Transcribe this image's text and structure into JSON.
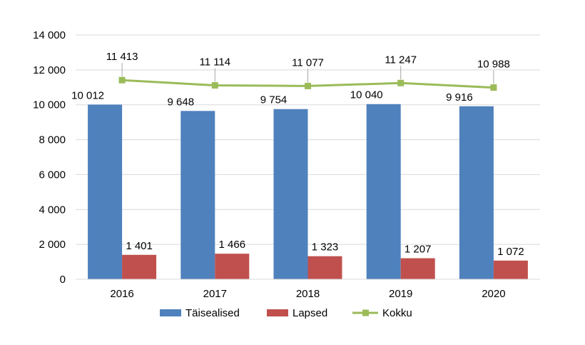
{
  "chart_data": {
    "type": "bar",
    "title": "",
    "xlabel": "",
    "ylabel": "",
    "categories": [
      "2016",
      "2017",
      "2018",
      "2019",
      "2020"
    ],
    "ylim": [
      0,
      14000
    ],
    "yticks": [
      0,
      2000,
      4000,
      6000,
      8000,
      10000,
      12000,
      14000
    ],
    "ytick_labels": [
      "0",
      "2 000",
      "4 000",
      "6 000",
      "8 000",
      "10 000",
      "12 000",
      "14 000"
    ],
    "grid": true,
    "legend_position": "bottom",
    "series": [
      {
        "name": "Täisealised",
        "kind": "bar",
        "color": "#4F81BD",
        "values": [
          10012,
          9648,
          9754,
          10040,
          9916
        ],
        "labels": [
          "10 012",
          "9 648",
          "9 754",
          "10 040",
          "9 916"
        ]
      },
      {
        "name": "Lapsed",
        "kind": "bar",
        "color": "#C0504D",
        "values": [
          1401,
          1466,
          1323,
          1207,
          1072
        ],
        "labels": [
          "1 401",
          "1 466",
          "1 323",
          "1 207",
          "1 072"
        ]
      },
      {
        "name": "Kokku",
        "kind": "line",
        "color": "#9BBB59",
        "values": [
          11413,
          11114,
          11077,
          11247,
          10988
        ],
        "labels": [
          "11 413",
          "11 114",
          "11 077",
          "11 247",
          "10 988"
        ]
      }
    ]
  }
}
